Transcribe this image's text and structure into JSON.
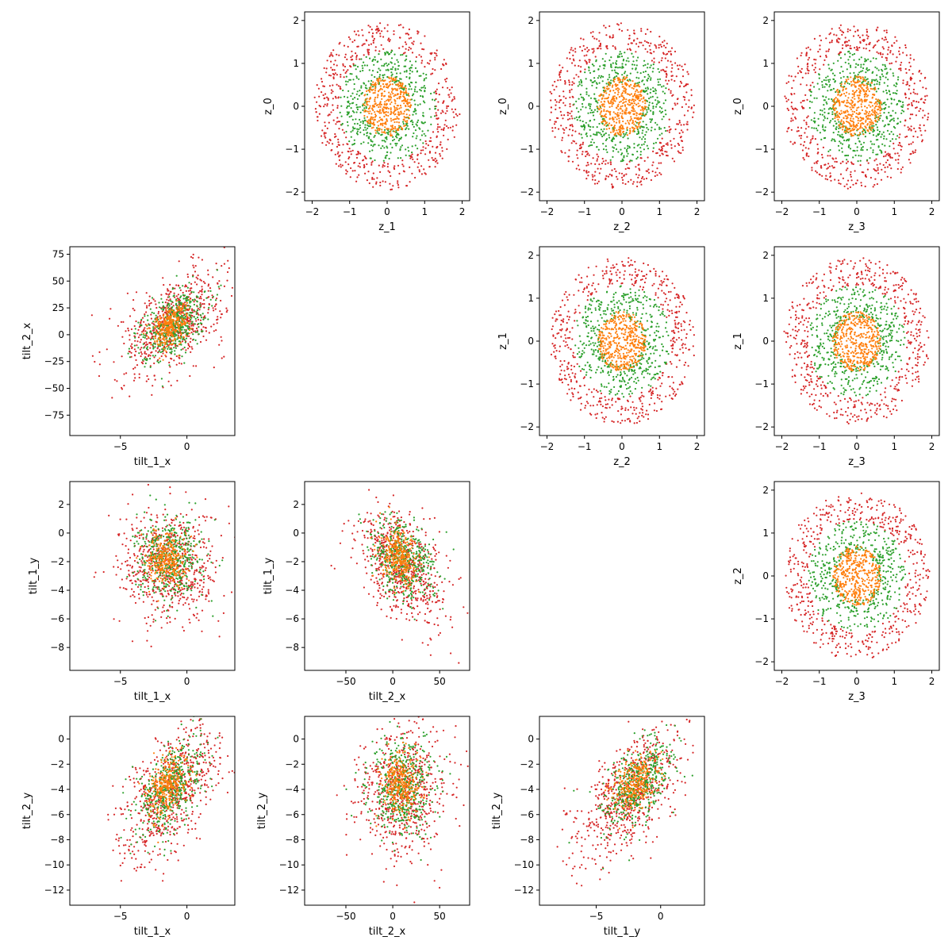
{
  "colors": {
    "outer": "#d62728",
    "middle": "#2ca02c",
    "inner": "#ff7f0e"
  },
  "chart_data": [
    {
      "id": "z0-z1",
      "type": "scatter",
      "xlabel": "z_1",
      "ylabel": "z_0",
      "xlim": [
        -2.2,
        2.2
      ],
      "ylim": [
        -2.2,
        2.2
      ],
      "xticks": [
        -2,
        -1,
        0,
        1,
        2
      ],
      "xtick_labels": [
        "−2",
        "−1",
        "0",
        "1",
        "2"
      ],
      "yticks": [
        -2,
        -1,
        0,
        1,
        2
      ],
      "ytick_labels": [
        "−2",
        "−1",
        "0",
        "1",
        "2"
      ],
      "series": [
        {
          "color": "outer",
          "distribution": "ring",
          "cx": 0,
          "cy": 0,
          "rx": [
            1.3,
            1.95
          ],
          "ry": [
            1.3,
            1.95
          ],
          "n": 520
        },
        {
          "color": "middle",
          "distribution": "ring",
          "cx": 0,
          "cy": 0,
          "rx": [
            0.55,
            1.3
          ],
          "ry": [
            0.55,
            1.3
          ],
          "n": 480
        },
        {
          "color": "inner",
          "distribution": "disk",
          "cx": 0,
          "cy": 0,
          "rx": 0.65,
          "ry": 0.7,
          "n": 420
        }
      ]
    },
    {
      "id": "z0-z2",
      "type": "scatter",
      "xlabel": "z_2",
      "ylabel": "z_0",
      "xlim": [
        -2.2,
        2.2
      ],
      "ylim": [
        -2.2,
        2.2
      ],
      "xticks": [
        -2,
        -1,
        0,
        1,
        2
      ],
      "xtick_labels": [
        "−2",
        "−1",
        "0",
        "1",
        "2"
      ],
      "yticks": [
        -2,
        -1,
        0,
        1,
        2
      ],
      "ytick_labels": [
        "−2",
        "−1",
        "0",
        "1",
        "2"
      ],
      "series": [
        {
          "color": "outer",
          "distribution": "ring",
          "cx": 0,
          "cy": 0,
          "rx": [
            1.3,
            1.95
          ],
          "ry": [
            1.3,
            1.95
          ],
          "n": 520
        },
        {
          "color": "middle",
          "distribution": "ring",
          "cx": 0,
          "cy": 0,
          "rx": [
            0.55,
            1.3
          ],
          "ry": [
            0.55,
            1.3
          ],
          "n": 480
        },
        {
          "color": "inner",
          "distribution": "disk",
          "cx": 0,
          "cy": 0,
          "rx": 0.65,
          "ry": 0.7,
          "n": 420
        }
      ]
    },
    {
      "id": "z0-z3",
      "type": "scatter",
      "xlabel": "z_3",
      "ylabel": "z_0",
      "xlim": [
        -2.2,
        2.2
      ],
      "ylim": [
        -2.2,
        2.2
      ],
      "xticks": [
        -2,
        -1,
        0,
        1,
        2
      ],
      "xtick_labels": [
        "−2",
        "−1",
        "0",
        "1",
        "2"
      ],
      "yticks": [
        -2,
        -1,
        0,
        1,
        2
      ],
      "ytick_labels": [
        "−2",
        "−1",
        "0",
        "1",
        "2"
      ],
      "series": [
        {
          "color": "outer",
          "distribution": "ring",
          "cx": 0,
          "cy": 0,
          "rx": [
            1.3,
            1.95
          ],
          "ry": [
            1.3,
            1.95
          ],
          "n": 520
        },
        {
          "color": "middle",
          "distribution": "ring",
          "cx": 0,
          "cy": 0,
          "rx": [
            0.55,
            1.3
          ],
          "ry": [
            0.55,
            1.3
          ],
          "n": 480
        },
        {
          "color": "inner",
          "distribution": "disk",
          "cx": 0,
          "cy": 0,
          "rx": 0.65,
          "ry": 0.7,
          "n": 420
        }
      ]
    },
    {
      "id": "z1-z2",
      "type": "scatter",
      "xlabel": "z_2",
      "ylabel": "z_1",
      "xlim": [
        -2.2,
        2.2
      ],
      "ylim": [
        -2.2,
        2.2
      ],
      "xticks": [
        -2,
        -1,
        0,
        1,
        2
      ],
      "xtick_labels": [
        "−2",
        "−1",
        "0",
        "1",
        "2"
      ],
      "yticks": [
        -2,
        -1,
        0,
        1,
        2
      ],
      "ytick_labels": [
        "−2",
        "−1",
        "0",
        "1",
        "2"
      ],
      "series": [
        {
          "color": "outer",
          "distribution": "ring",
          "cx": 0,
          "cy": 0,
          "rx": [
            1.3,
            1.95
          ],
          "ry": [
            1.3,
            1.95
          ],
          "n": 520
        },
        {
          "color": "middle",
          "distribution": "ring",
          "cx": 0,
          "cy": 0,
          "rx": [
            0.55,
            1.3
          ],
          "ry": [
            0.55,
            1.3
          ],
          "n": 480
        },
        {
          "color": "inner",
          "distribution": "disk",
          "cx": 0,
          "cy": 0,
          "rx": 0.65,
          "ry": 0.7,
          "n": 420
        }
      ]
    },
    {
      "id": "z1-z3",
      "type": "scatter",
      "xlabel": "z_3",
      "ylabel": "z_1",
      "xlim": [
        -2.2,
        2.2
      ],
      "ylim": [
        -2.2,
        2.2
      ],
      "xticks": [
        -2,
        -1,
        0,
        1,
        2
      ],
      "xtick_labels": [
        "−2",
        "−1",
        "0",
        "1",
        "2"
      ],
      "yticks": [
        -2,
        -1,
        0,
        1,
        2
      ],
      "ytick_labels": [
        "−2",
        "−1",
        "0",
        "1",
        "2"
      ],
      "series": [
        {
          "color": "outer",
          "distribution": "ring",
          "cx": 0,
          "cy": 0,
          "rx": [
            1.3,
            1.95
          ],
          "ry": [
            1.3,
            1.95
          ],
          "n": 520
        },
        {
          "color": "middle",
          "distribution": "ring",
          "cx": 0,
          "cy": 0,
          "rx": [
            0.55,
            1.3
          ],
          "ry": [
            0.55,
            1.3
          ],
          "n": 480
        },
        {
          "color": "inner",
          "distribution": "disk",
          "cx": 0,
          "cy": 0,
          "rx": 0.65,
          "ry": 0.7,
          "n": 420
        }
      ]
    },
    {
      "id": "z2-z3",
      "type": "scatter",
      "xlabel": "z_3",
      "ylabel": "z_2",
      "xlim": [
        -2.2,
        2.2
      ],
      "ylim": [
        -2.2,
        2.2
      ],
      "xticks": [
        -2,
        -1,
        0,
        1,
        2
      ],
      "xtick_labels": [
        "−2",
        "−1",
        "0",
        "1",
        "2"
      ],
      "yticks": [
        -2,
        -1,
        0,
        1,
        2
      ],
      "ytick_labels": [
        "−2",
        "−1",
        "0",
        "1",
        "2"
      ],
      "series": [
        {
          "color": "outer",
          "distribution": "ring",
          "cx": 0,
          "cy": 0,
          "rx": [
            1.3,
            1.95
          ],
          "ry": [
            1.3,
            1.95
          ],
          "n": 520
        },
        {
          "color": "middle",
          "distribution": "ring",
          "cx": 0,
          "cy": 0,
          "rx": [
            0.55,
            1.3
          ],
          "ry": [
            0.55,
            1.3
          ],
          "n": 480
        },
        {
          "color": "inner",
          "distribution": "disk",
          "cx": 0,
          "cy": 0,
          "rx": 0.65,
          "ry": 0.7,
          "n": 420
        }
      ]
    },
    {
      "id": "tilt2x-tilt1x",
      "type": "scatter",
      "xlabel": "tilt_1_x",
      "ylabel": "tilt_2_x",
      "xlim": [
        -8.8,
        3.6
      ],
      "ylim": [
        -94,
        82
      ],
      "xticks": [
        -5,
        0
      ],
      "xtick_labels": [
        "−5",
        "0"
      ],
      "yticks": [
        -75,
        -50,
        -25,
        0,
        25,
        50,
        75
      ],
      "ytick_labels": [
        "−75",
        "−50",
        "−25",
        "0",
        "25",
        "50",
        "75"
      ],
      "series": [
        {
          "color": "outer",
          "distribution": "gauss",
          "mx": -1.0,
          "my": 12,
          "sx": 1.9,
          "sy": 24,
          "rho": 0.5,
          "n": 650
        },
        {
          "color": "middle",
          "distribution": "gauss",
          "mx": -1.0,
          "my": 10,
          "sx": 1.2,
          "sy": 17,
          "rho": 0.5,
          "n": 460
        },
        {
          "color": "inner",
          "distribution": "gauss",
          "mx": -1.3,
          "my": 8,
          "sx": 0.7,
          "sy": 10,
          "rho": 0.4,
          "n": 300
        }
      ]
    },
    {
      "id": "tilt1y-tilt1x",
      "type": "scatter",
      "xlabel": "tilt_1_x",
      "ylabel": "tilt_1_y",
      "xlim": [
        -8.8,
        3.6
      ],
      "ylim": [
        -9.6,
        3.6
      ],
      "xticks": [
        -5,
        0
      ],
      "xtick_labels": [
        "−5",
        "0"
      ],
      "yticks": [
        -8,
        -6,
        -4,
        -2,
        0,
        2
      ],
      "ytick_labels": [
        "−8",
        "−6",
        "−4",
        "−2",
        "0",
        "2"
      ],
      "series": [
        {
          "color": "outer",
          "distribution": "gauss",
          "mx": -1.3,
          "my": -2.4,
          "sx": 1.9,
          "sy": 2.0,
          "rho": 0.0,
          "n": 650
        },
        {
          "color": "middle",
          "distribution": "gauss",
          "mx": -1.3,
          "my": -1.8,
          "sx": 1.2,
          "sy": 1.4,
          "rho": 0.0,
          "n": 460
        },
        {
          "color": "inner",
          "distribution": "gauss",
          "mx": -1.5,
          "my": -1.8,
          "sx": 0.7,
          "sy": 0.9,
          "rho": 0.0,
          "n": 300
        }
      ]
    },
    {
      "id": "tilt1y-tilt2x",
      "type": "scatter",
      "xlabel": "tilt_2_x",
      "ylabel": "tilt_1_y",
      "xlim": [
        -94,
        82
      ],
      "ylim": [
        -9.6,
        3.6
      ],
      "xticks": [
        -50,
        0,
        50
      ],
      "xtick_labels": [
        "−50",
        "0",
        "50"
      ],
      "yticks": [
        -8,
        -6,
        -4,
        -2,
        0,
        2
      ],
      "ytick_labels": [
        "−8",
        "−6",
        "−4",
        "−2",
        "0",
        "2"
      ],
      "series": [
        {
          "color": "outer",
          "distribution": "gauss",
          "mx": 12,
          "my": -2.4,
          "sx": 24,
          "sy": 2.0,
          "rho": -0.45,
          "n": 650
        },
        {
          "color": "middle",
          "distribution": "gauss",
          "mx": 10,
          "my": -1.8,
          "sx": 17,
          "sy": 1.4,
          "rho": -0.35,
          "n": 460
        },
        {
          "color": "inner",
          "distribution": "gauss",
          "mx": 8,
          "my": -1.8,
          "sx": 10,
          "sy": 0.9,
          "rho": -0.2,
          "n": 300
        }
      ]
    },
    {
      "id": "tilt2y-tilt1x",
      "type": "scatter",
      "xlabel": "tilt_1_x",
      "ylabel": "tilt_2_y",
      "xlim": [
        -8.8,
        3.6
      ],
      "ylim": [
        -13.2,
        1.8
      ],
      "xticks": [
        -5,
        0
      ],
      "xtick_labels": [
        "−5",
        "0"
      ],
      "yticks": [
        -12,
        -10,
        -8,
        -6,
        -4,
        -2,
        0
      ],
      "ytick_labels": [
        "−12",
        "−10",
        "−8",
        "−6",
        "−4",
        "−2",
        "0"
      ],
      "series": [
        {
          "color": "outer",
          "distribution": "gauss",
          "mx": -1.2,
          "my": -4.2,
          "sx": 1.9,
          "sy": 2.6,
          "rho": 0.55,
          "n": 650
        },
        {
          "color": "middle",
          "distribution": "gauss",
          "mx": -1.2,
          "my": -3.8,
          "sx": 1.2,
          "sy": 1.9,
          "rho": 0.5,
          "n": 460
        },
        {
          "color": "inner",
          "distribution": "gauss",
          "mx": -1.4,
          "my": -3.6,
          "sx": 0.7,
          "sy": 1.2,
          "rho": 0.4,
          "n": 300
        }
      ]
    },
    {
      "id": "tilt2y-tilt2x",
      "type": "scatter",
      "xlabel": "tilt_2_x",
      "ylabel": "tilt_2_y",
      "xlim": [
        -94,
        82
      ],
      "ylim": [
        -13.2,
        1.8
      ],
      "xticks": [
        -50,
        0,
        50
      ],
      "xtick_labels": [
        "−50",
        "0",
        "50"
      ],
      "yticks": [
        -12,
        -10,
        -8,
        -6,
        -4,
        -2,
        0
      ],
      "ytick_labels": [
        "−12",
        "−10",
        "−8",
        "−6",
        "−4",
        "−2",
        "0"
      ],
      "series": [
        {
          "color": "outer",
          "distribution": "gauss",
          "mx": 12,
          "my": -4.2,
          "sx": 24,
          "sy": 2.6,
          "rho": 0.05,
          "n": 650
        },
        {
          "color": "middle",
          "distribution": "gauss",
          "mx": 10,
          "my": -3.8,
          "sx": 17,
          "sy": 1.9,
          "rho": 0.05,
          "n": 460
        },
        {
          "color": "inner",
          "distribution": "gauss",
          "mx": 8,
          "my": -3.6,
          "sx": 10,
          "sy": 1.2,
          "rho": 0.0,
          "n": 300
        }
      ]
    },
    {
      "id": "tilt2y-tilt1y",
      "type": "scatter",
      "xlabel": "tilt_1_y",
      "ylabel": "tilt_2_y",
      "xlim": [
        -9.4,
        3.4
      ],
      "ylim": [
        -13.2,
        1.8
      ],
      "xticks": [
        -5,
        0
      ],
      "xtick_labels": [
        "−5",
        "0"
      ],
      "yticks": [
        -12,
        -10,
        -8,
        -6,
        -4,
        -2,
        0
      ],
      "ytick_labels": [
        "−12",
        "−10",
        "−8",
        "−6",
        "−4",
        "−2",
        "0"
      ],
      "series": [
        {
          "color": "outer",
          "distribution": "gauss",
          "mx": -2.3,
          "my": -4.2,
          "sx": 2.0,
          "sy": 2.6,
          "rho": 0.6,
          "n": 650
        },
        {
          "color": "middle",
          "distribution": "gauss",
          "mx": -1.9,
          "my": -3.8,
          "sx": 1.4,
          "sy": 1.9,
          "rho": 0.55,
          "n": 460
        },
        {
          "color": "inner",
          "distribution": "gauss",
          "mx": -1.9,
          "my": -3.6,
          "sx": 0.9,
          "sy": 1.2,
          "rho": 0.45,
          "n": 300
        }
      ]
    }
  ]
}
